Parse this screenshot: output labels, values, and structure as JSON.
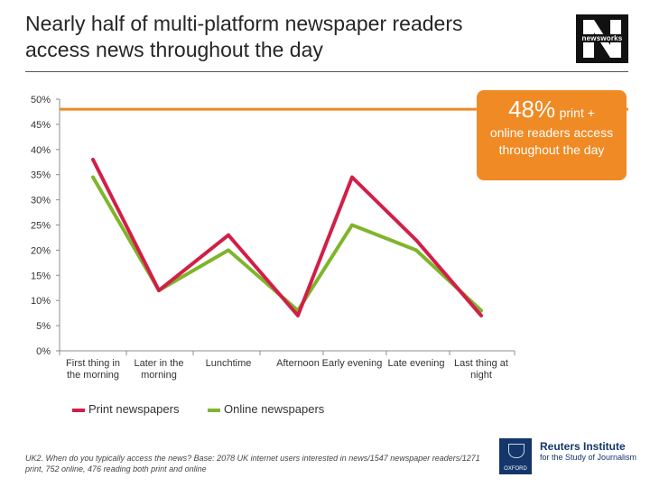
{
  "title": "Nearly half of multi-platform newspaper readers access news throughout the day",
  "logo_text": "newsworks",
  "callout": {
    "value": "48%",
    "lead": "print +",
    "rest": "online readers access throughout the day"
  },
  "source": "UK2. When do you typically access the news? Base: 2078 UK internet users interested in news/1547 newspaper readers/1271 print, 752 online, 476 reading both print and online",
  "oxford_label": "OXFORD",
  "reuters": {
    "name": "Reuters Institute",
    "sub": "for the Study of Journalism"
  },
  "colors": {
    "print": "#d11f48",
    "online": "#7fb52c",
    "reference": "#f08a24"
  },
  "chart_data": {
    "type": "line",
    "categories": [
      "First thing in the morning",
      "Later in the morning",
      "Lunchtime",
      "Afternoon",
      "Early evening",
      "Late evening",
      "Last thing at night"
    ],
    "series": [
      {
        "name": "Print newspapers",
        "values": [
          38,
          12,
          23,
          7,
          34.5,
          22,
          7
        ]
      },
      {
        "name": "Online newspapers",
        "values": [
          34.5,
          12,
          20,
          8,
          25,
          20,
          8
        ]
      }
    ],
    "reference_line": {
      "value": 48,
      "label": "48%"
    },
    "yticks": [
      "0%",
      "5%",
      "10%",
      "15%",
      "20%",
      "25%",
      "30%",
      "35%",
      "40%",
      "45%",
      "50%"
    ],
    "ylim": [
      0,
      50
    ],
    "legend": [
      "Print newspapers",
      "Online newspapers"
    ],
    "legend_position": "bottom"
  }
}
